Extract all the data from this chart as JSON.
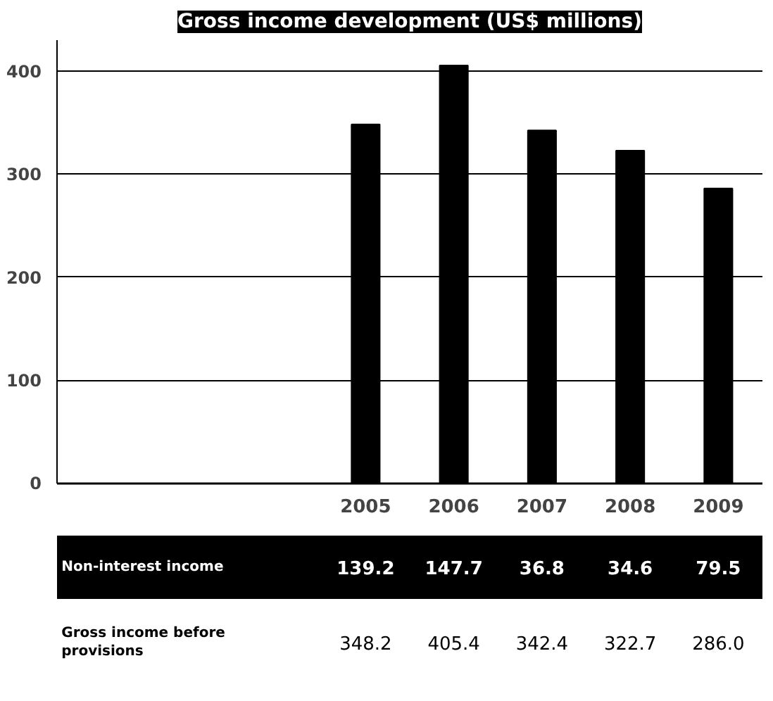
{
  "chart_data": {
    "type": "bar",
    "title": "Gross income development (US$ millions)",
    "categories": [
      null,
      null,
      null,
      "2005",
      "2006",
      "2007",
      "2008",
      "2009"
    ],
    "series": [
      {
        "name": "Gross income before provisions",
        "color": "#000000",
        "values": [
          null,
          null,
          null,
          348.2,
          405.4,
          342.4,
          322.7,
          286.0
        ],
        "value_labels": [
          null,
          null,
          null,
          "348.2",
          "405.4",
          "342.4",
          "322.7",
          "286.0"
        ]
      }
    ],
    "annotations": [
      "Non-interest income",
      "139.2",
      "147.7",
      "36.8",
      "34.6",
      "79.5"
    ],
    "ylim": [
      0,
      430
    ],
    "yticks": [
      0,
      100,
      200,
      300,
      400
    ],
    "grid": "y"
  }
}
